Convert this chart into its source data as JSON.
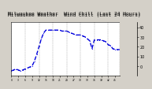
{
  "title": "Milwaukee Weather  Wind Chill (Last 24 Hours)",
  "bg_color": "#d4d0c8",
  "plot_bg": "#ffffff",
  "line_color": "#0000dd",
  "grid_color": "#888888",
  "title_bg": "#d4d0c8",
  "y_values": [
    -5,
    -4,
    -3,
    -4,
    -5,
    -4,
    -3,
    -2,
    -1,
    0,
    5,
    12,
    20,
    28,
    34,
    37,
    37,
    37,
    37,
    37,
    37,
    37,
    36,
    36,
    36,
    35,
    34,
    33,
    32,
    32,
    32,
    31,
    30,
    28,
    26,
    18,
    27,
    27,
    27,
    27,
    26,
    25,
    22,
    21,
    18,
    17,
    17,
    17
  ],
  "ylim": [
    -10,
    45
  ],
  "right_yticks": [
    0,
    10,
    20,
    30,
    40
  ],
  "right_ytick_labels": [
    "0",
    "10",
    "20",
    "30",
    "40"
  ],
  "num_points": 48,
  "x_grid_positions": [
    0,
    6,
    12,
    18,
    24,
    30,
    36,
    42,
    47
  ],
  "title_fontsize": 4.5,
  "tick_fontsize": 3.5,
  "line_width": 1.0,
  "marker_size": 1.5
}
